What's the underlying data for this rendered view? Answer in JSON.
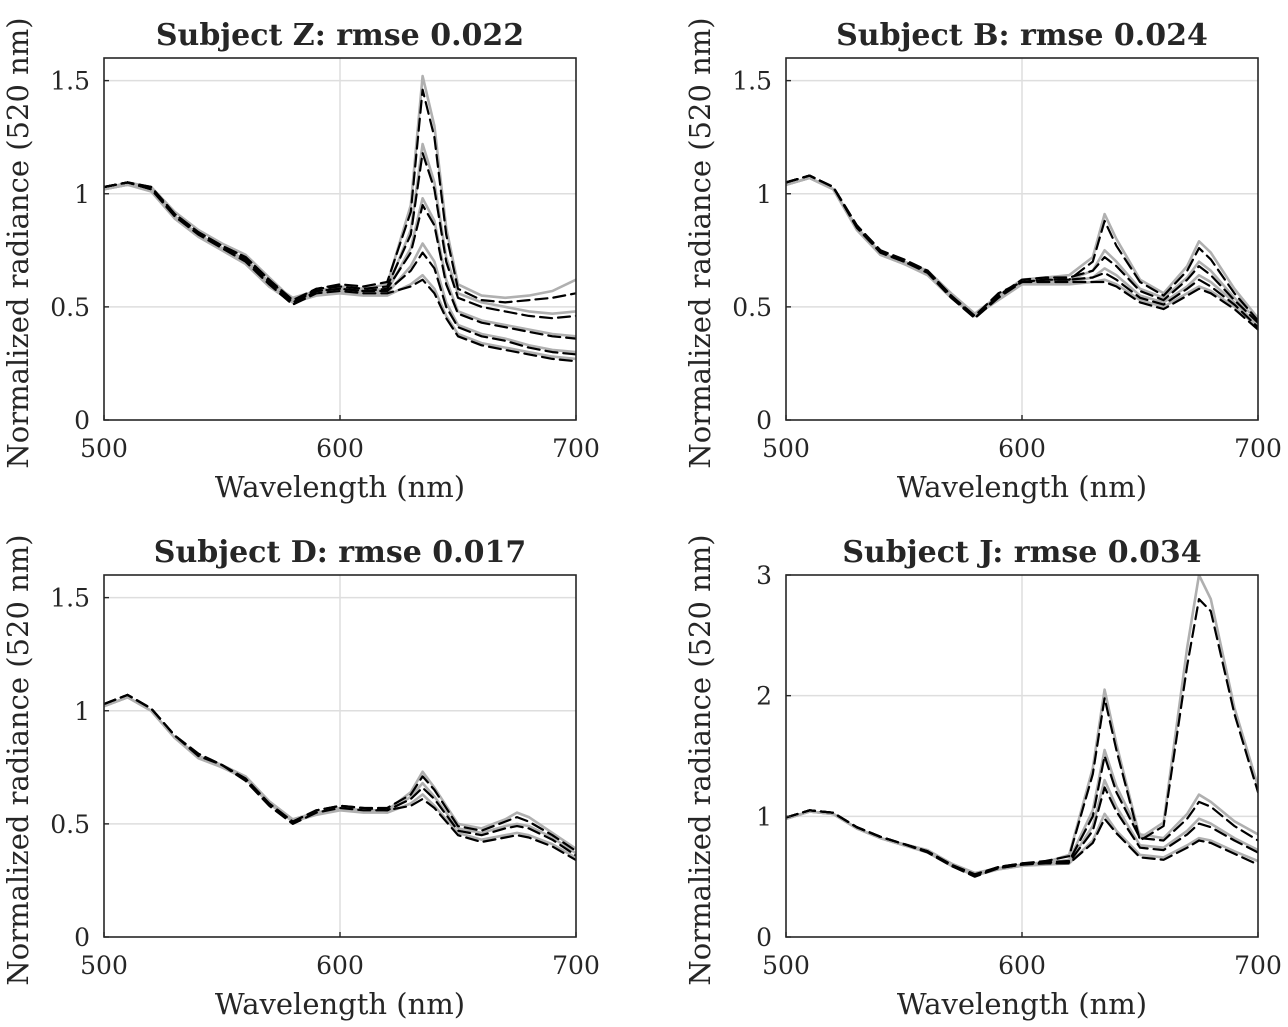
{
  "chart_data": [
    {
      "type": "line",
      "title": "Subject Z:  rmse 0.022",
      "xlabel": "Wavelength (nm)",
      "ylabel": "Normalized radiance (520 nm)",
      "xlim": [
        500,
        700
      ],
      "ylim": [
        0,
        1.6
      ],
      "xticks": [
        500,
        600,
        700
      ],
      "yticks": [
        0,
        0.5,
        1,
        1.5
      ],
      "ytick_labels": [
        "0",
        "0.5",
        "1",
        "1.5"
      ],
      "grid": true,
      "x": [
        500,
        510,
        520,
        530,
        540,
        550,
        560,
        570,
        580,
        590,
        600,
        610,
        620,
        630,
        635,
        640,
        645,
        650,
        660,
        670,
        680,
        690,
        700
      ],
      "series": [
        {
          "style": "measured",
          "values": [
            1.02,
            1.05,
            1.03,
            0.92,
            0.84,
            0.78,
            0.73,
            0.63,
            0.53,
            0.57,
            0.59,
            0.58,
            0.6,
            0.95,
            1.52,
            1.3,
            0.85,
            0.6,
            0.55,
            0.54,
            0.55,
            0.57,
            0.62
          ]
        },
        {
          "style": "predicted",
          "values": [
            1.03,
            1.05,
            1.02,
            0.91,
            0.83,
            0.77,
            0.72,
            0.62,
            0.52,
            0.58,
            0.6,
            0.59,
            0.61,
            0.92,
            1.46,
            1.25,
            0.82,
            0.58,
            0.53,
            0.52,
            0.53,
            0.54,
            0.56
          ]
        },
        {
          "style": "measured",
          "values": [
            1.02,
            1.04,
            1.02,
            0.9,
            0.82,
            0.76,
            0.71,
            0.61,
            0.54,
            0.57,
            0.58,
            0.57,
            0.58,
            0.84,
            1.22,
            1.05,
            0.72,
            0.56,
            0.52,
            0.5,
            0.48,
            0.47,
            0.48
          ]
        },
        {
          "style": "predicted",
          "values": [
            1.03,
            1.05,
            1.03,
            0.91,
            0.83,
            0.77,
            0.72,
            0.62,
            0.53,
            0.58,
            0.59,
            0.58,
            0.59,
            0.82,
            1.18,
            1.02,
            0.7,
            0.54,
            0.5,
            0.48,
            0.46,
            0.45,
            0.46
          ]
        },
        {
          "style": "measured",
          "values": [
            1.02,
            1.04,
            1.02,
            0.9,
            0.82,
            0.76,
            0.7,
            0.6,
            0.53,
            0.56,
            0.57,
            0.56,
            0.57,
            0.76,
            0.98,
            0.88,
            0.62,
            0.48,
            0.44,
            0.42,
            0.4,
            0.38,
            0.37
          ]
        },
        {
          "style": "predicted",
          "values": [
            1.03,
            1.05,
            1.03,
            0.91,
            0.83,
            0.77,
            0.71,
            0.61,
            0.52,
            0.57,
            0.58,
            0.57,
            0.58,
            0.74,
            0.95,
            0.86,
            0.6,
            0.47,
            0.43,
            0.41,
            0.39,
            0.37,
            0.36
          ]
        },
        {
          "style": "measured",
          "values": [
            1.02,
            1.04,
            1.02,
            0.89,
            0.81,
            0.75,
            0.69,
            0.59,
            0.52,
            0.56,
            0.57,
            0.56,
            0.56,
            0.68,
            0.78,
            0.7,
            0.52,
            0.42,
            0.38,
            0.36,
            0.33,
            0.31,
            0.3
          ]
        },
        {
          "style": "predicted",
          "values": [
            1.03,
            1.05,
            1.02,
            0.9,
            0.82,
            0.76,
            0.7,
            0.6,
            0.51,
            0.57,
            0.58,
            0.57,
            0.57,
            0.66,
            0.74,
            0.67,
            0.5,
            0.41,
            0.37,
            0.35,
            0.32,
            0.3,
            0.29
          ]
        },
        {
          "style": "measured",
          "values": [
            1.02,
            1.04,
            1.01,
            0.89,
            0.81,
            0.75,
            0.69,
            0.59,
            0.52,
            0.55,
            0.56,
            0.55,
            0.55,
            0.6,
            0.64,
            0.58,
            0.46,
            0.38,
            0.34,
            0.32,
            0.3,
            0.28,
            0.27
          ]
        },
        {
          "style": "predicted",
          "values": [
            1.03,
            1.05,
            1.02,
            0.9,
            0.82,
            0.76,
            0.7,
            0.6,
            0.51,
            0.56,
            0.57,
            0.56,
            0.56,
            0.59,
            0.62,
            0.56,
            0.45,
            0.37,
            0.33,
            0.31,
            0.29,
            0.27,
            0.26
          ]
        }
      ]
    },
    {
      "type": "line",
      "title": "Subject B:  rmse 0.024",
      "xlabel": "Wavelength (nm)",
      "ylabel": "Normalized radiance (520 nm)",
      "xlim": [
        500,
        700
      ],
      "ylim": [
        0,
        1.6
      ],
      "xticks": [
        500,
        600,
        700
      ],
      "yticks": [
        0,
        0.5,
        1,
        1.5
      ],
      "ytick_labels": [
        "0",
        "0.5",
        "1",
        "1.5"
      ],
      "grid": true,
      "x": [
        500,
        510,
        520,
        530,
        540,
        550,
        560,
        570,
        580,
        590,
        600,
        610,
        620,
        630,
        635,
        640,
        650,
        660,
        670,
        675,
        680,
        690,
        700
      ],
      "series": [
        {
          "style": "measured",
          "values": [
            1.04,
            1.07,
            1.02,
            0.85,
            0.74,
            0.7,
            0.66,
            0.56,
            0.47,
            0.55,
            0.62,
            0.63,
            0.64,
            0.72,
            0.91,
            0.8,
            0.62,
            0.56,
            0.68,
            0.79,
            0.74,
            0.58,
            0.45
          ]
        },
        {
          "style": "predicted",
          "values": [
            1.05,
            1.08,
            1.03,
            0.86,
            0.75,
            0.71,
            0.66,
            0.55,
            0.46,
            0.56,
            0.61,
            0.62,
            0.62,
            0.7,
            0.88,
            0.77,
            0.61,
            0.55,
            0.66,
            0.76,
            0.71,
            0.56,
            0.44
          ]
        },
        {
          "style": "measured",
          "values": [
            1.04,
            1.07,
            1.02,
            0.85,
            0.74,
            0.69,
            0.65,
            0.55,
            0.46,
            0.54,
            0.61,
            0.62,
            0.62,
            0.66,
            0.75,
            0.7,
            0.58,
            0.54,
            0.63,
            0.7,
            0.66,
            0.54,
            0.44
          ]
        },
        {
          "style": "predicted",
          "values": [
            1.05,
            1.08,
            1.03,
            0.86,
            0.75,
            0.7,
            0.66,
            0.55,
            0.45,
            0.55,
            0.62,
            0.63,
            0.63,
            0.66,
            0.72,
            0.68,
            0.57,
            0.53,
            0.62,
            0.68,
            0.64,
            0.53,
            0.43
          ]
        },
        {
          "style": "measured",
          "values": [
            1.04,
            1.07,
            1.02,
            0.85,
            0.73,
            0.69,
            0.65,
            0.55,
            0.46,
            0.54,
            0.6,
            0.61,
            0.61,
            0.63,
            0.67,
            0.64,
            0.55,
            0.52,
            0.59,
            0.64,
            0.61,
            0.52,
            0.42
          ]
        },
        {
          "style": "predicted",
          "values": [
            1.05,
            1.08,
            1.03,
            0.86,
            0.74,
            0.7,
            0.66,
            0.55,
            0.45,
            0.55,
            0.61,
            0.62,
            0.62,
            0.63,
            0.65,
            0.62,
            0.54,
            0.51,
            0.58,
            0.62,
            0.59,
            0.51,
            0.41
          ]
        },
        {
          "style": "measured",
          "values": [
            1.04,
            1.07,
            1.02,
            0.84,
            0.73,
            0.69,
            0.64,
            0.54,
            0.46,
            0.53,
            0.6,
            0.6,
            0.6,
            0.61,
            0.62,
            0.6,
            0.53,
            0.5,
            0.56,
            0.59,
            0.57,
            0.5,
            0.41
          ]
        },
        {
          "style": "predicted",
          "values": [
            1.05,
            1.08,
            1.03,
            0.85,
            0.74,
            0.7,
            0.65,
            0.54,
            0.45,
            0.54,
            0.61,
            0.61,
            0.61,
            0.61,
            0.61,
            0.59,
            0.52,
            0.49,
            0.55,
            0.58,
            0.56,
            0.49,
            0.4
          ]
        }
      ]
    },
    {
      "type": "line",
      "title": "Subject D:  rmse 0.017",
      "xlabel": "Wavelength (nm)",
      "ylabel": "Normalized radiance (520 nm)",
      "xlim": [
        500,
        700
      ],
      "ylim": [
        0,
        1.6
      ],
      "xticks": [
        500,
        600,
        700
      ],
      "yticks": [
        0,
        0.5,
        1,
        1.5
      ],
      "ytick_labels": [
        "0",
        "0.5",
        "1",
        "1.5"
      ],
      "grid": true,
      "x": [
        500,
        510,
        520,
        530,
        540,
        550,
        560,
        570,
        580,
        590,
        600,
        610,
        620,
        630,
        635,
        640,
        650,
        660,
        670,
        675,
        680,
        690,
        700
      ],
      "series": [
        {
          "style": "measured",
          "values": [
            1.02,
            1.06,
            1.0,
            0.88,
            0.8,
            0.76,
            0.71,
            0.6,
            0.52,
            0.55,
            0.57,
            0.56,
            0.56,
            0.64,
            0.73,
            0.66,
            0.5,
            0.48,
            0.52,
            0.55,
            0.53,
            0.46,
            0.39
          ]
        },
        {
          "style": "predicted",
          "values": [
            1.03,
            1.07,
            1.01,
            0.89,
            0.81,
            0.76,
            0.7,
            0.59,
            0.51,
            0.56,
            0.58,
            0.57,
            0.57,
            0.63,
            0.71,
            0.65,
            0.49,
            0.47,
            0.51,
            0.53,
            0.51,
            0.45,
            0.38
          ]
        },
        {
          "style": "measured",
          "values": [
            1.02,
            1.06,
            1.0,
            0.88,
            0.8,
            0.75,
            0.7,
            0.59,
            0.52,
            0.55,
            0.57,
            0.56,
            0.55,
            0.62,
            0.68,
            0.62,
            0.48,
            0.46,
            0.49,
            0.5,
            0.49,
            0.44,
            0.37
          ]
        },
        {
          "style": "predicted",
          "values": [
            1.03,
            1.07,
            1.01,
            0.89,
            0.81,
            0.76,
            0.7,
            0.59,
            0.51,
            0.56,
            0.58,
            0.57,
            0.56,
            0.61,
            0.66,
            0.61,
            0.47,
            0.45,
            0.48,
            0.49,
            0.48,
            0.43,
            0.36
          ]
        },
        {
          "style": "measured",
          "values": [
            1.02,
            1.06,
            1.0,
            0.88,
            0.79,
            0.75,
            0.7,
            0.59,
            0.51,
            0.54,
            0.56,
            0.55,
            0.55,
            0.59,
            0.63,
            0.58,
            0.46,
            0.43,
            0.45,
            0.46,
            0.45,
            0.41,
            0.35
          ]
        },
        {
          "style": "predicted",
          "values": [
            1.03,
            1.07,
            1.01,
            0.89,
            0.8,
            0.76,
            0.69,
            0.58,
            0.5,
            0.55,
            0.57,
            0.56,
            0.56,
            0.58,
            0.61,
            0.57,
            0.45,
            0.42,
            0.44,
            0.45,
            0.44,
            0.4,
            0.34
          ]
        }
      ]
    },
    {
      "type": "line",
      "title": "Subject J:  rmse 0.034",
      "xlabel": "Wavelength (nm)",
      "ylabel": "Normalized radiance (520 nm)",
      "xlim": [
        500,
        700
      ],
      "ylim": [
        0,
        3
      ],
      "xticks": [
        500,
        600,
        700
      ],
      "yticks": [
        0,
        1,
        2,
        3
      ],
      "ytick_labels": [
        "0",
        "1",
        "2",
        "3"
      ],
      "grid": true,
      "x": [
        500,
        510,
        520,
        530,
        540,
        550,
        560,
        570,
        580,
        590,
        600,
        610,
        620,
        630,
        635,
        640,
        650,
        660,
        670,
        675,
        680,
        690,
        700
      ],
      "series": [
        {
          "style": "measured",
          "values": [
            0.98,
            1.04,
            1.02,
            0.9,
            0.82,
            0.77,
            0.72,
            0.61,
            0.53,
            0.57,
            0.6,
            0.62,
            0.68,
            1.4,
            2.05,
            1.6,
            0.82,
            0.95,
            2.4,
            3.0,
            2.8,
            1.9,
            1.25
          ]
        },
        {
          "style": "predicted",
          "values": [
            0.99,
            1.05,
            1.03,
            0.91,
            0.83,
            0.77,
            0.71,
            0.6,
            0.52,
            0.58,
            0.61,
            0.63,
            0.67,
            1.35,
            1.98,
            1.55,
            0.8,
            0.92,
            2.25,
            2.8,
            2.7,
            1.85,
            1.2
          ]
        },
        {
          "style": "measured",
          "values": [
            0.98,
            1.04,
            1.02,
            0.9,
            0.82,
            0.76,
            0.71,
            0.6,
            0.52,
            0.57,
            0.6,
            0.61,
            0.64,
            1.05,
            1.55,
            1.25,
            0.85,
            0.82,
            1.02,
            1.18,
            1.12,
            0.96,
            0.85
          ]
        },
        {
          "style": "predicted",
          "values": [
            0.99,
            1.05,
            1.03,
            0.91,
            0.83,
            0.77,
            0.71,
            0.6,
            0.51,
            0.58,
            0.61,
            0.62,
            0.63,
            1.0,
            1.5,
            1.2,
            0.82,
            0.8,
            0.98,
            1.12,
            1.08,
            0.92,
            0.8
          ]
        },
        {
          "style": "measured",
          "values": [
            0.98,
            1.04,
            1.02,
            0.9,
            0.82,
            0.76,
            0.71,
            0.6,
            0.52,
            0.56,
            0.59,
            0.61,
            0.62,
            0.92,
            1.3,
            1.08,
            0.76,
            0.74,
            0.88,
            0.98,
            0.94,
            0.82,
            0.72
          ]
        },
        {
          "style": "predicted",
          "values": [
            0.99,
            1.05,
            1.03,
            0.91,
            0.83,
            0.77,
            0.71,
            0.59,
            0.51,
            0.57,
            0.6,
            0.62,
            0.62,
            0.88,
            1.24,
            1.04,
            0.74,
            0.72,
            0.85,
            0.94,
            0.91,
            0.8,
            0.7
          ]
        },
        {
          "style": "measured",
          "values": [
            0.98,
            1.04,
            1.02,
            0.9,
            0.82,
            0.76,
            0.7,
            0.59,
            0.51,
            0.56,
            0.59,
            0.6,
            0.61,
            0.8,
            1.02,
            0.88,
            0.68,
            0.66,
            0.76,
            0.82,
            0.8,
            0.71,
            0.63
          ]
        },
        {
          "style": "predicted",
          "values": [
            0.99,
            1.05,
            1.03,
            0.91,
            0.83,
            0.77,
            0.7,
            0.59,
            0.5,
            0.57,
            0.6,
            0.61,
            0.61,
            0.78,
            0.98,
            0.86,
            0.66,
            0.64,
            0.74,
            0.8,
            0.78,
            0.69,
            0.6
          ]
        }
      ]
    }
  ]
}
